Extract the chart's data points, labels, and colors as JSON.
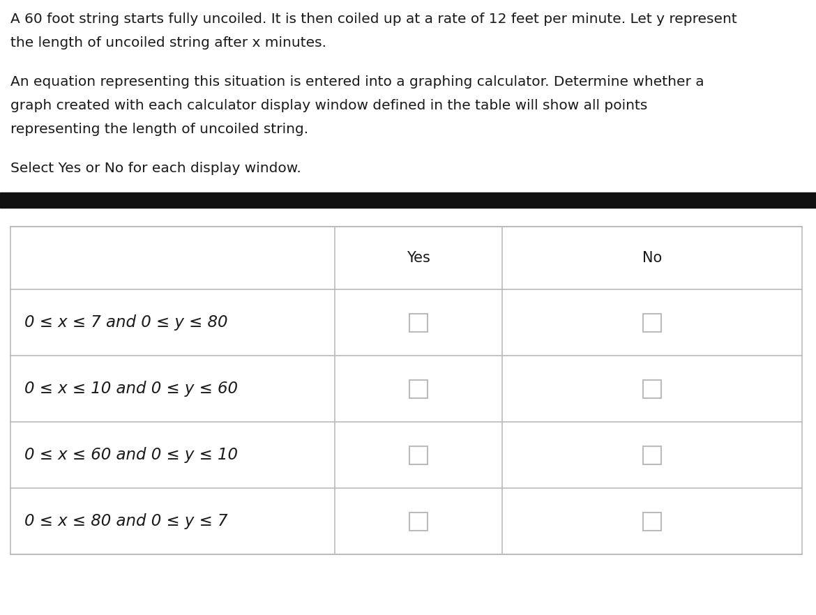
{
  "title_line1": "A 60 foot string starts fully uncoiled. It is then coiled up at a rate of 12 feet per minute. Let y represent",
  "title_line2": "the length of uncoiled string after x minutes.",
  "subtitle_line1": "An equation representing this situation is entered into a graphing calculator. Determine whether a",
  "subtitle_line2": "graph created with each calculator display window defined in the table will show all points",
  "subtitle_line3": "representing the length of uncoiled string.",
  "instruction_text": "Select Yes or No for each display window.",
  "col_headers": [
    "Yes",
    "No"
  ],
  "rows": [
    "0 ≤ x ≤ 7 and 0 ≤ y ≤ 80",
    "0 ≤ x ≤ 10 and 0 ≤ y ≤ 60",
    "0 ≤ x ≤ 60 and 0 ≤ y ≤ 10",
    "0 ≤ x ≤ 80 and 0 ≤ y ≤ 7"
  ],
  "bg_color": "#ffffff",
  "text_color": "#1a1a1a",
  "divider_color": "#111111",
  "table_border_color": "#bbbbbb",
  "checkbox_edge_color": "#bbbbbb",
  "checkbox_fill": "#ffffff",
  "text_fontsize": 14.5,
  "header_fontsize": 15,
  "row_fontsize": 16.5
}
